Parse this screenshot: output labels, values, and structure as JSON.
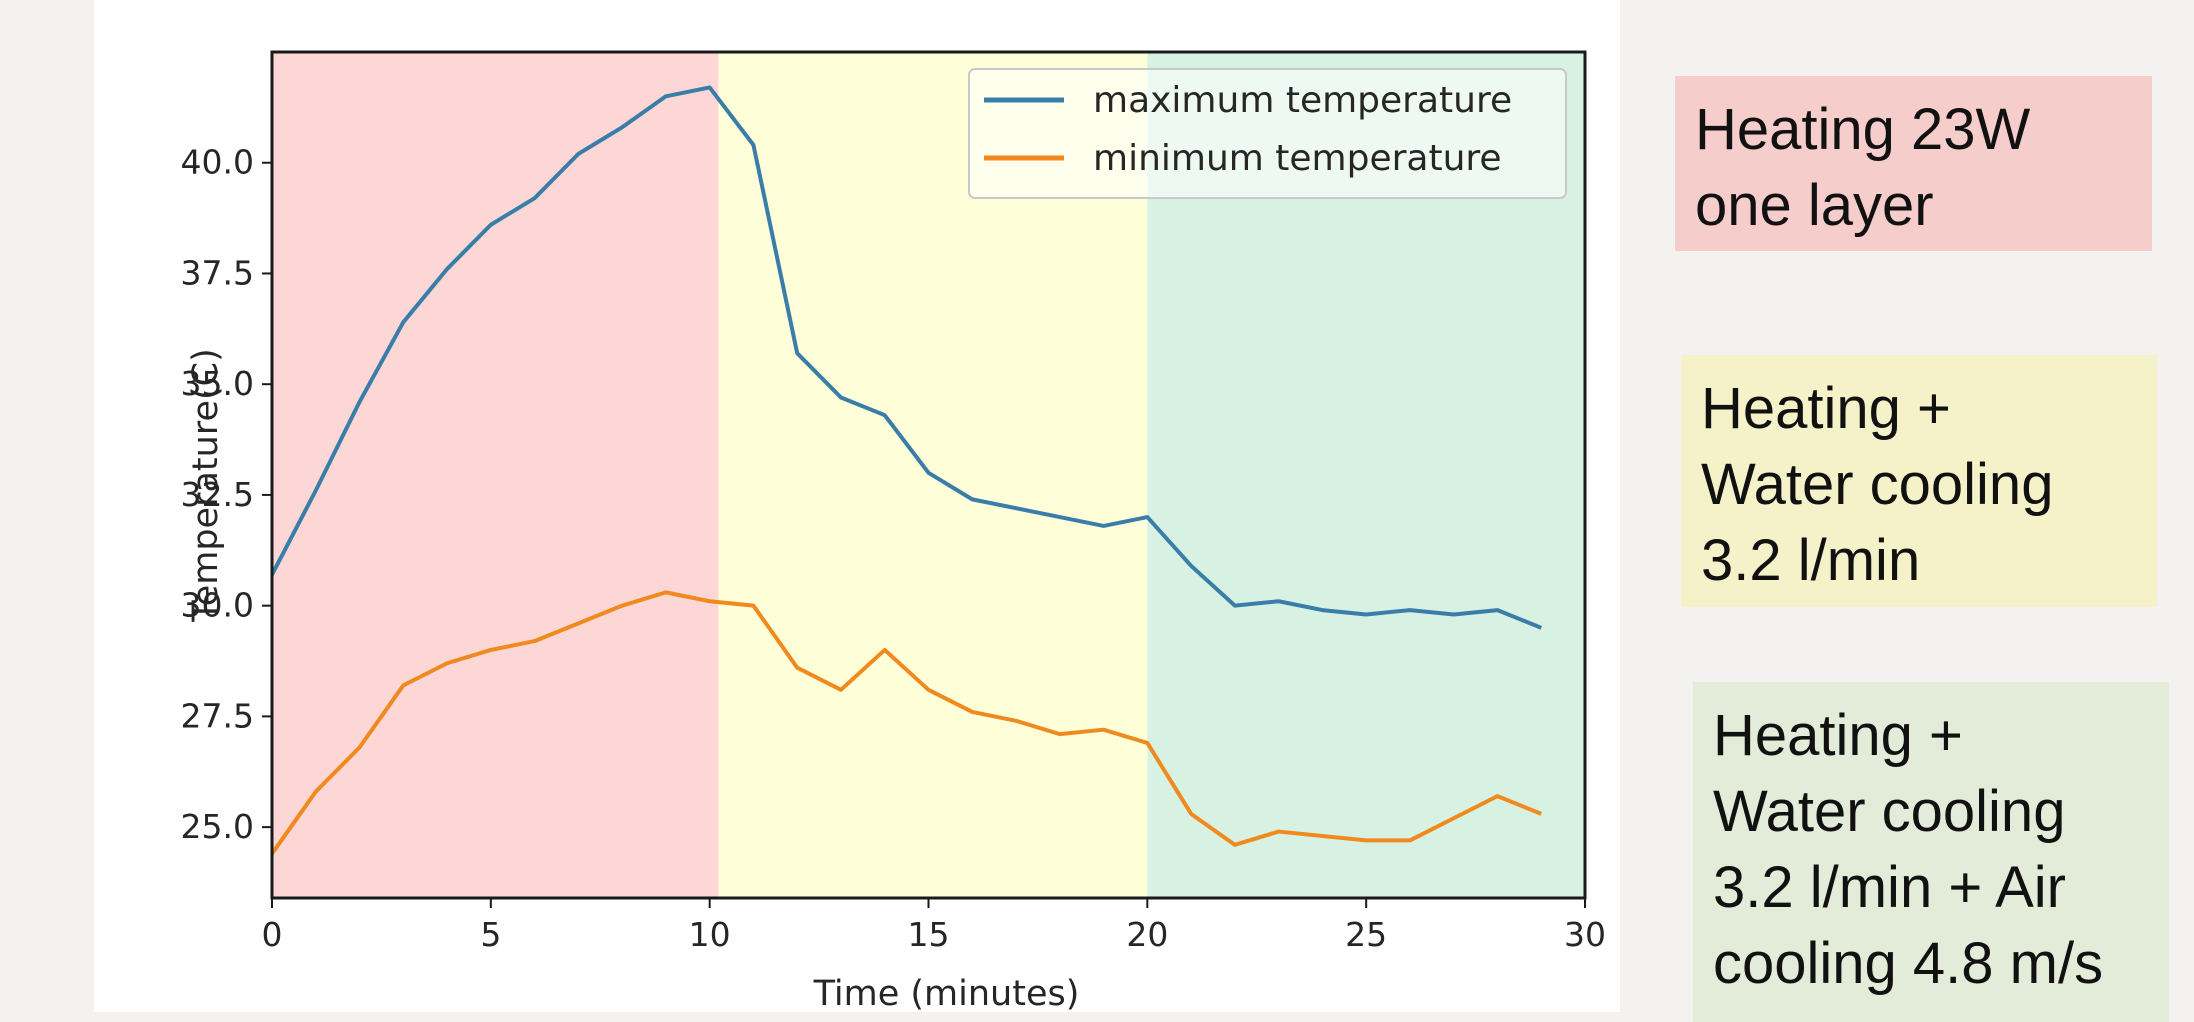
{
  "chart_data": {
    "type": "line",
    "title": "",
    "xlabel": "Time (minutes)",
    "ylabel": "Temperature(C)",
    "xlim": [
      0,
      30
    ],
    "ylim": [
      23.4,
      42.5
    ],
    "xticks": [
      "0",
      "5",
      "10",
      "15",
      "20",
      "25",
      "30"
    ],
    "yticks": [
      "25.0",
      "27.5",
      "30.0",
      "32.5",
      "35.0",
      "37.5",
      "40.0"
    ],
    "grid": false,
    "legend_position": "top-right",
    "x": [
      0,
      1,
      2,
      3,
      4,
      5,
      6,
      7,
      8,
      9,
      10,
      11,
      12,
      13,
      14,
      15,
      16,
      17,
      18,
      19,
      20,
      21,
      22,
      23,
      24,
      25,
      26,
      27,
      28,
      29
    ],
    "series": [
      {
        "name": "maximum temperature",
        "color": "#3a7da8",
        "values": [
          30.7,
          32.6,
          34.6,
          36.4,
          37.6,
          38.6,
          39.2,
          40.2,
          40.8,
          41.5,
          41.7,
          40.4,
          35.7,
          34.7,
          34.3,
          33.0,
          32.4,
          32.2,
          32.0,
          31.8,
          32.0,
          30.9,
          30.0,
          30.1,
          29.9,
          29.8,
          29.9,
          29.8,
          29.9,
          29.5
        ]
      },
      {
        "name": "minimum temperature",
        "color": "#f08a1e",
        "values": [
          24.4,
          25.8,
          26.8,
          28.2,
          28.7,
          29.0,
          29.2,
          29.6,
          30.0,
          30.3,
          30.1,
          30.0,
          28.6,
          28.1,
          29.0,
          28.1,
          27.6,
          27.4,
          27.1,
          27.2,
          26.9,
          25.3,
          24.6,
          24.9,
          24.8,
          24.7,
          24.7,
          25.2,
          25.7,
          25.3
        ]
      }
    ],
    "shaded_regions": [
      {
        "x_start": 0,
        "x_end": 10.2,
        "color": "#fdd7d6"
      },
      {
        "x_start": 10.2,
        "x_end": 20,
        "color": "#fefed9"
      },
      {
        "x_start": 20,
        "x_end": 30,
        "color": "#d7f2e3"
      }
    ]
  },
  "notes": [
    {
      "lines": [
        "Heating 23W",
        "one layer"
      ],
      "bg": "#f5cdcb"
    },
    {
      "lines": [
        "Heating +",
        "Water cooling",
        "3.2 l/min"
      ],
      "bg": "#f5f2c9"
    },
    {
      "lines": [
        "Heating +",
        "Water cooling",
        "3.2 l/min + Air",
        "cooling 4.8 m/s"
      ],
      "bg": "#e2ecd9"
    }
  ]
}
